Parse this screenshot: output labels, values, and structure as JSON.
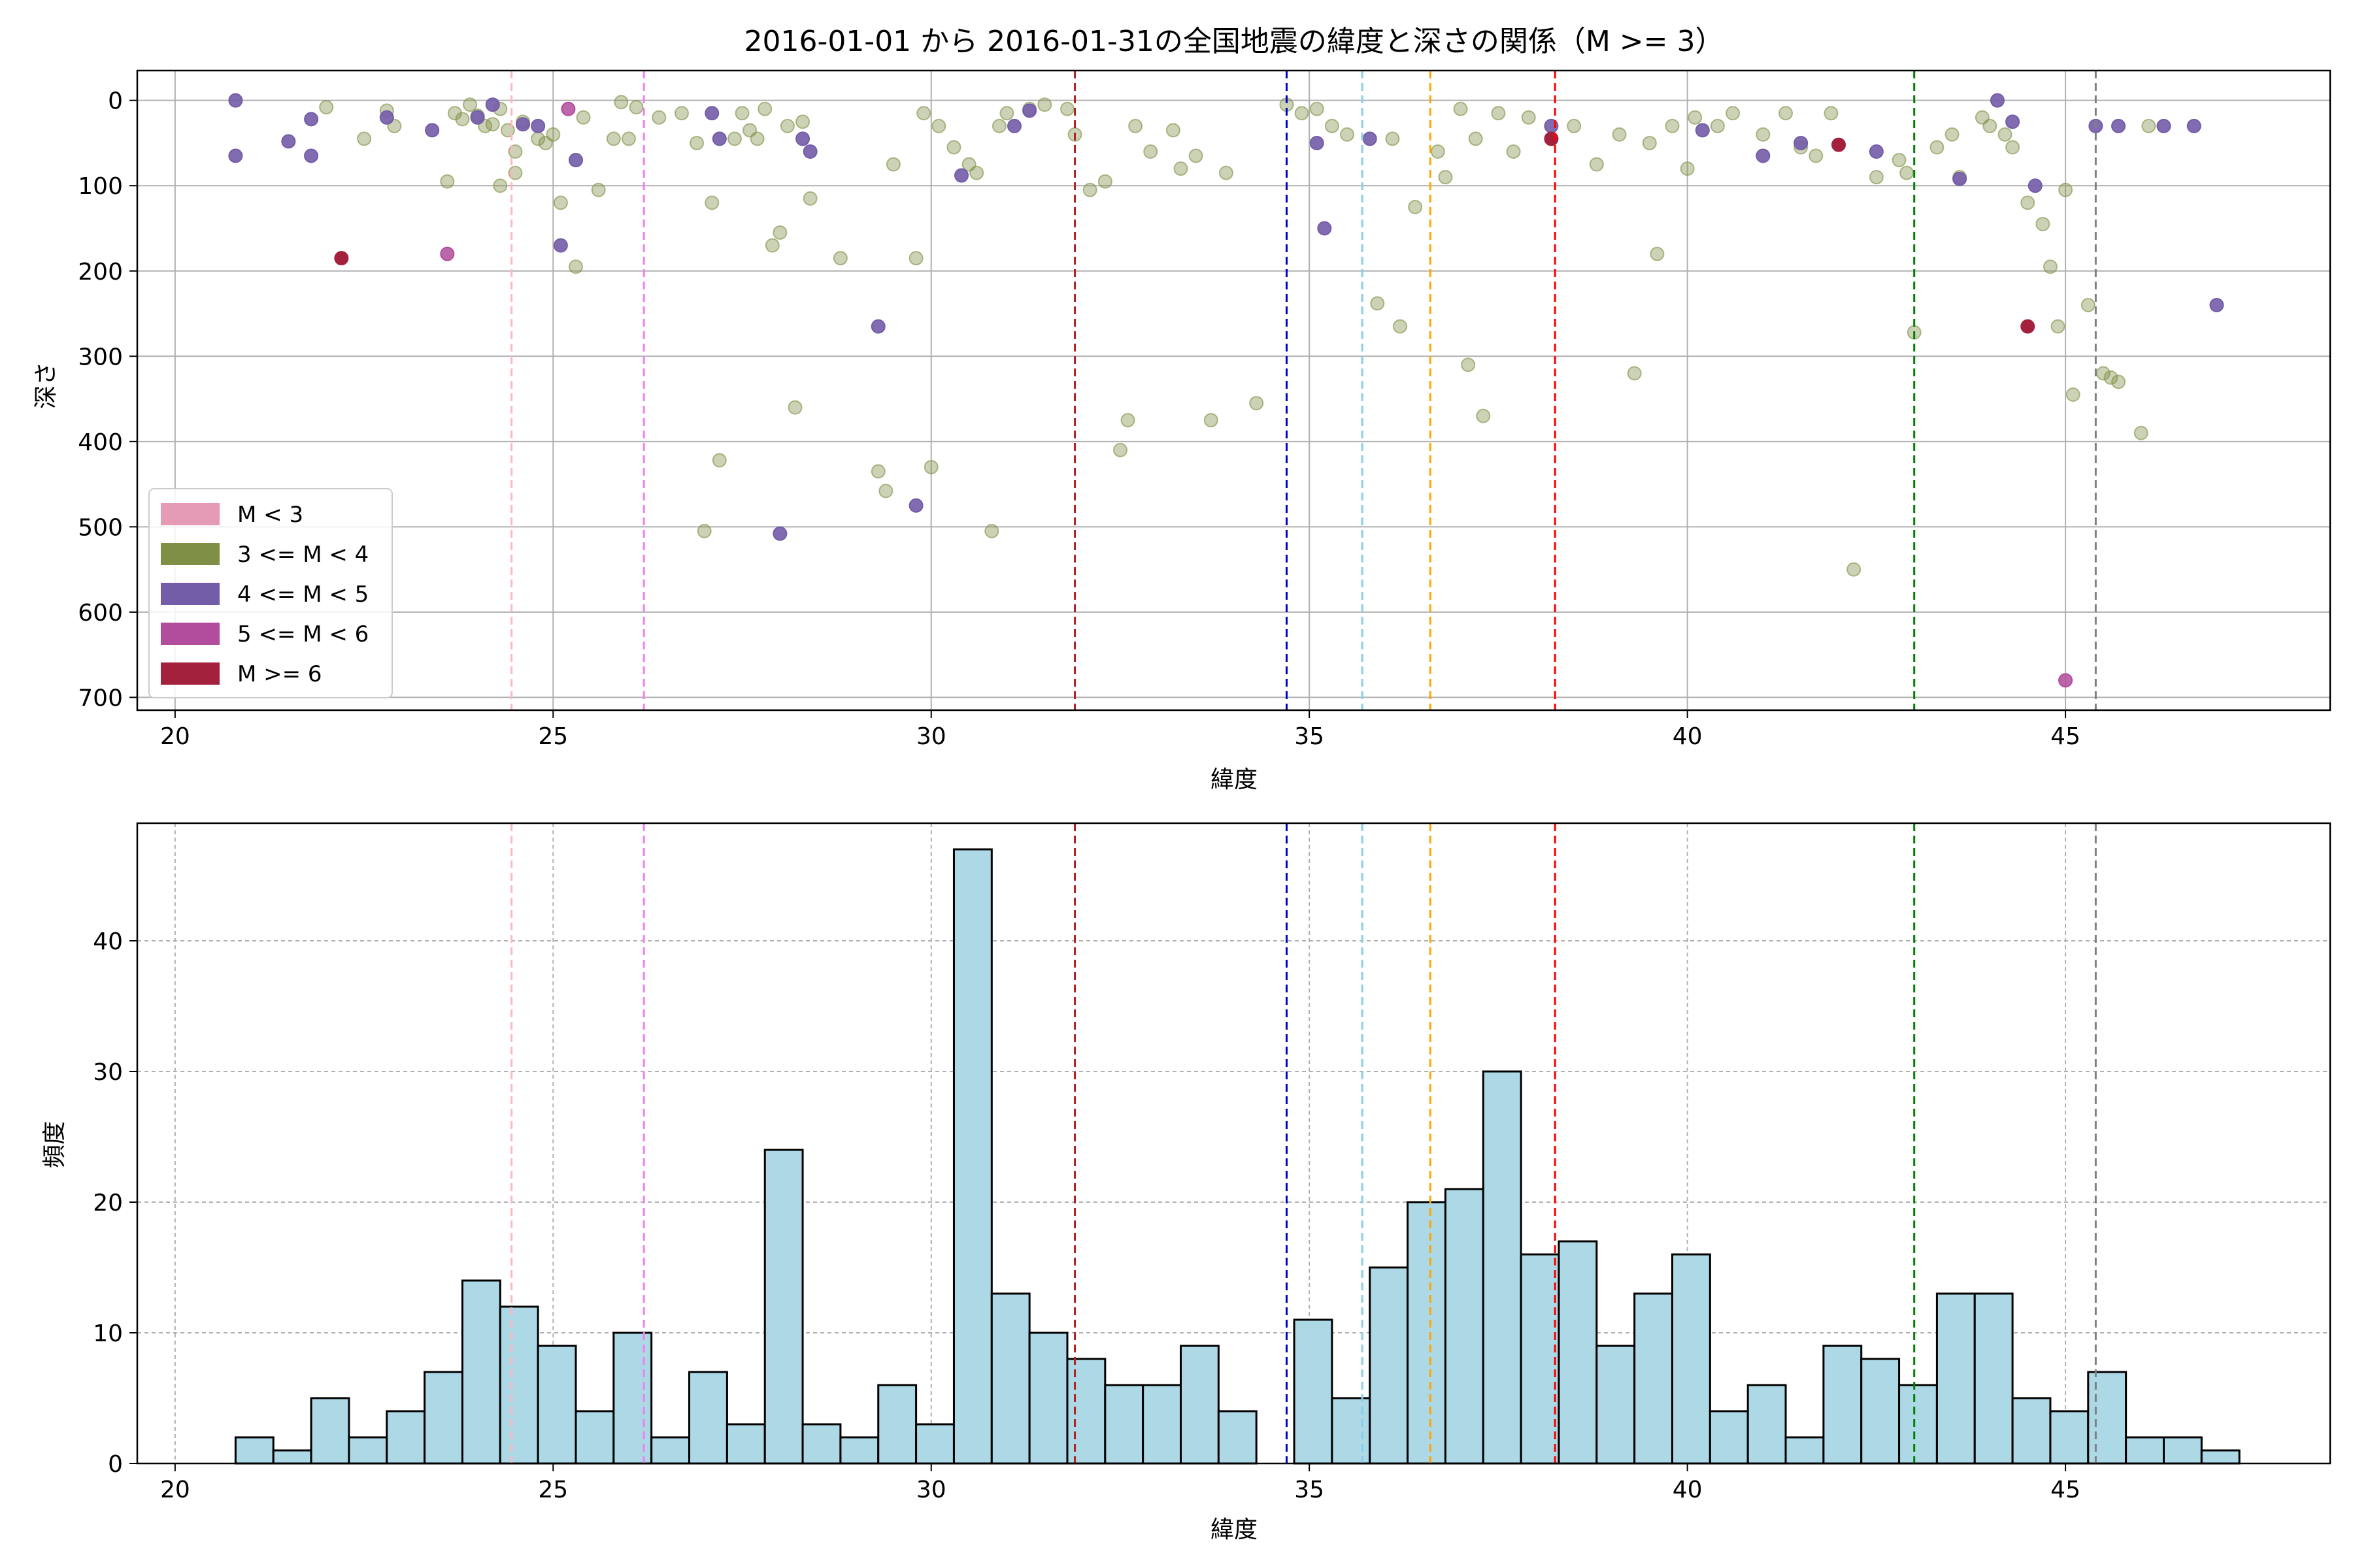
{
  "figure": {
    "title": "2016-01-01 から 2016-01-31の全国地震の緯度と深さの関係（M >= 3）"
  },
  "colors": {
    "m_lt3": "#e59ab5",
    "m_3_4": "#7f8f45",
    "m_4_5": "#735ca8",
    "m_5_6": "#b24c9c",
    "m_ge6": "#a3213d",
    "hist_fill": "#add8e6",
    "hist_edge": "#000000"
  },
  "chart_data": [
    {
      "type": "scatter",
      "xlabel": "緯度",
      "ylabel": "深さ",
      "xlim": [
        19.5,
        48.5
      ],
      "ylim": [
        715,
        -35
      ],
      "y_inverted": true,
      "xticks": [
        20,
        25,
        30,
        35,
        40,
        45
      ],
      "yticks": [
        0,
        100,
        200,
        300,
        400,
        500,
        600,
        700
      ],
      "grid": true,
      "legend_position": "lower-left",
      "legend": [
        {
          "label": "M < 3",
          "color": "#e59ab5"
        },
        {
          "label": "3 <= M < 4",
          "color": "#7f8f45"
        },
        {
          "label": "4 <= M < 5",
          "color": "#735ca8"
        },
        {
          "label": "5 <= M < 6",
          "color": "#b24c9c"
        },
        {
          "label": "M >= 6",
          "color": "#a3213d"
        }
      ],
      "reference_lines": [
        {
          "x": 24.45,
          "color": "#ffb6c1"
        },
        {
          "x": 26.2,
          "color": "#ee82ee"
        },
        {
          "x": 31.9,
          "color": "#b22222"
        },
        {
          "x": 34.7,
          "color": "#0000cd"
        },
        {
          "x": 35.7,
          "color": "#87ceeb"
        },
        {
          "x": 36.6,
          "color": "#ffa500"
        },
        {
          "x": 38.25,
          "color": "#ff0000"
        },
        {
          "x": 43.0,
          "color": "#008000"
        },
        {
          "x": 45.4,
          "color": "#808080"
        }
      ],
      "points_m3_4": [
        [
          22.0,
          8
        ],
        [
          22.5,
          45
        ],
        [
          22.8,
          12
        ],
        [
          22.9,
          30
        ],
        [
          23.6,
          95
        ],
        [
          23.7,
          15
        ],
        [
          23.8,
          22
        ],
        [
          23.9,
          5
        ],
        [
          24.0,
          18
        ],
        [
          24.1,
          30
        ],
        [
          24.2,
          28
        ],
        [
          24.3,
          10
        ],
        [
          24.3,
          100
        ],
        [
          24.4,
          35
        ],
        [
          24.5,
          60
        ],
        [
          24.5,
          85
        ],
        [
          24.6,
          25
        ],
        [
          24.8,
          45
        ],
        [
          24.9,
          50
        ],
        [
          25.0,
          40
        ],
        [
          25.1,
          120
        ],
        [
          25.3,
          195
        ],
        [
          25.4,
          20
        ],
        [
          25.6,
          105
        ],
        [
          25.8,
          45
        ],
        [
          25.9,
          2
        ],
        [
          26.0,
          45
        ],
        [
          26.1,
          8
        ],
        [
          26.4,
          20
        ],
        [
          26.7,
          15
        ],
        [
          26.9,
          50
        ],
        [
          27.0,
          505
        ],
        [
          27.1,
          120
        ],
        [
          27.2,
          422
        ],
        [
          27.4,
          45
        ],
        [
          27.5,
          15
        ],
        [
          27.6,
          35
        ],
        [
          27.7,
          45
        ],
        [
          27.8,
          10
        ],
        [
          27.9,
          170
        ],
        [
          28.0,
          155
        ],
        [
          28.1,
          30
        ],
        [
          28.2,
          360
        ],
        [
          28.3,
          25
        ],
        [
          28.4,
          115
        ],
        [
          28.8,
          185
        ],
        [
          29.3,
          435
        ],
        [
          29.4,
          458
        ],
        [
          29.5,
          75
        ],
        [
          29.8,
          185
        ],
        [
          29.9,
          15
        ],
        [
          30.0,
          430
        ],
        [
          30.1,
          30
        ],
        [
          30.3,
          55
        ],
        [
          30.5,
          75
        ],
        [
          30.6,
          85
        ],
        [
          30.8,
          505
        ],
        [
          30.9,
          30
        ],
        [
          31.0,
          15
        ],
        [
          31.3,
          10
        ],
        [
          31.5,
          5
        ],
        [
          31.8,
          10
        ],
        [
          31.9,
          40
        ],
        [
          32.1,
          105
        ],
        [
          32.3,
          95
        ],
        [
          32.5,
          410
        ],
        [
          32.6,
          375
        ],
        [
          32.7,
          30
        ],
        [
          32.9,
          60
        ],
        [
          33.2,
          35
        ],
        [
          33.3,
          80
        ],
        [
          33.5,
          65
        ],
        [
          33.7,
          375
        ],
        [
          33.9,
          85
        ],
        [
          34.3,
          355
        ],
        [
          34.7,
          5
        ],
        [
          34.9,
          15
        ],
        [
          35.1,
          10
        ],
        [
          35.3,
          30
        ],
        [
          35.5,
          40
        ],
        [
          35.9,
          238
        ],
        [
          36.1,
          45
        ],
        [
          36.2,
          265
        ],
        [
          36.4,
          125
        ],
        [
          36.7,
          60
        ],
        [
          36.8,
          90
        ],
        [
          37.0,
          10
        ],
        [
          37.1,
          310
        ],
        [
          37.2,
          45
        ],
        [
          37.3,
          370
        ],
        [
          37.5,
          15
        ],
        [
          37.7,
          60
        ],
        [
          37.9,
          20
        ],
        [
          38.2,
          45
        ],
        [
          38.5,
          30
        ],
        [
          38.8,
          75
        ],
        [
          39.1,
          40
        ],
        [
          39.3,
          320
        ],
        [
          39.5,
          50
        ],
        [
          39.6,
          180
        ],
        [
          39.8,
          30
        ],
        [
          40.0,
          80
        ],
        [
          40.1,
          20
        ],
        [
          40.4,
          30
        ],
        [
          40.6,
          15
        ],
        [
          41.0,
          40
        ],
        [
          41.3,
          15
        ],
        [
          41.5,
          55
        ],
        [
          41.7,
          65
        ],
        [
          41.9,
          15
        ],
        [
          42.2,
          550
        ],
        [
          42.5,
          90
        ],
        [
          42.8,
          70
        ],
        [
          42.9,
          85
        ],
        [
          43.0,
          272
        ],
        [
          43.3,
          55
        ],
        [
          43.5,
          40
        ],
        [
          43.6,
          90
        ],
        [
          43.9,
          20
        ],
        [
          44.0,
          30
        ],
        [
          44.2,
          40
        ],
        [
          44.3,
          55
        ],
        [
          44.5,
          120
        ],
        [
          44.7,
          145
        ],
        [
          44.8,
          195
        ],
        [
          44.9,
          265
        ],
        [
          45.0,
          105
        ],
        [
          45.1,
          345
        ],
        [
          45.3,
          240
        ],
        [
          45.5,
          320
        ],
        [
          45.6,
          325
        ],
        [
          45.7,
          330
        ],
        [
          46.0,
          390
        ],
        [
          46.1,
          30
        ]
      ],
      "points_m4_5": [
        [
          20.8,
          0
        ],
        [
          20.8,
          65
        ],
        [
          21.5,
          48
        ],
        [
          21.8,
          22
        ],
        [
          21.8,
          65
        ],
        [
          22.8,
          20
        ],
        [
          23.4,
          35
        ],
        [
          24.0,
          20
        ],
        [
          24.2,
          5
        ],
        [
          24.6,
          28
        ],
        [
          24.8,
          30
        ],
        [
          25.1,
          170
        ],
        [
          25.3,
          70
        ],
        [
          27.1,
          15
        ],
        [
          27.2,
          45
        ],
        [
          28.3,
          45
        ],
        [
          28.4,
          60
        ],
        [
          28.0,
          508
        ],
        [
          29.3,
          265
        ],
        [
          29.8,
          475
        ],
        [
          30.4,
          88
        ],
        [
          31.1,
          30
        ],
        [
          31.3,
          12
        ],
        [
          35.1,
          50
        ],
        [
          35.2,
          150
        ],
        [
          35.8,
          45
        ],
        [
          38.2,
          30
        ],
        [
          40.2,
          35
        ],
        [
          41.0,
          65
        ],
        [
          41.5,
          50
        ],
        [
          42.5,
          60
        ],
        [
          43.6,
          92
        ],
        [
          44.1,
          0
        ],
        [
          44.3,
          25
        ],
        [
          44.6,
          100
        ],
        [
          45.4,
          30
        ],
        [
          45.7,
          30
        ],
        [
          46.3,
          30
        ],
        [
          46.7,
          30
        ],
        [
          47.0,
          240
        ]
      ],
      "points_m5_6": [
        [
          23.6,
          180
        ],
        [
          25.2,
          10
        ],
        [
          45.0,
          680
        ]
      ],
      "points_m6": [
        [
          22.2,
          185
        ],
        [
          38.2,
          45
        ],
        [
          42.0,
          52
        ],
        [
          44.5,
          265
        ]
      ]
    },
    {
      "type": "bar",
      "xlabel": "緯度",
      "ylabel": "頻度",
      "xlim": [
        19.5,
        48.5
      ],
      "ylim": [
        0,
        49
      ],
      "xticks": [
        20,
        25,
        30,
        35,
        40,
        45
      ],
      "yticks": [
        0,
        10,
        20,
        30,
        40
      ],
      "grid": true,
      "bin_start": 20.8,
      "bin_width": 0.5,
      "counts": [
        2,
        1,
        5,
        2,
        4,
        7,
        14,
        12,
        9,
        4,
        10,
        2,
        7,
        3,
        24,
        3,
        2,
        6,
        3,
        47,
        13,
        10,
        8,
        6,
        6,
        9,
        4,
        0,
        11,
        5,
        15,
        20,
        21,
        30,
        16,
        17,
        9,
        13,
        16,
        4,
        6,
        2,
        9,
        8,
        6,
        13,
        13,
        5,
        4,
        7,
        2,
        2,
        1
      ],
      "reference_lines": [
        {
          "x": 24.45,
          "color": "#ffb6c1"
        },
        {
          "x": 26.2,
          "color": "#ee82ee"
        },
        {
          "x": 31.9,
          "color": "#b22222"
        },
        {
          "x": 34.7,
          "color": "#0000cd"
        },
        {
          "x": 35.7,
          "color": "#87ceeb"
        },
        {
          "x": 36.6,
          "color": "#ffa500"
        },
        {
          "x": 38.25,
          "color": "#ff0000"
        },
        {
          "x": 43.0,
          "color": "#008000"
        },
        {
          "x": 45.4,
          "color": "#808080"
        }
      ]
    }
  ]
}
